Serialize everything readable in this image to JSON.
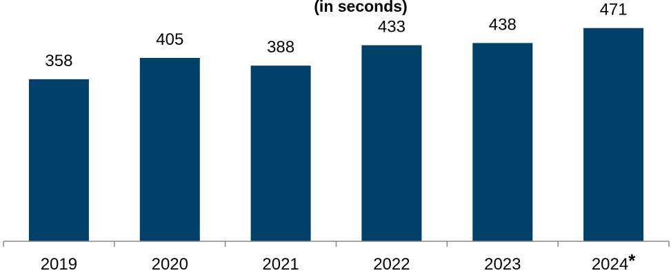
{
  "chart_data": {
    "type": "bar",
    "subtitle": "(in seconds)",
    "categories": [
      "2019",
      "2020",
      "2021",
      "2022",
      "2023",
      "2024"
    ],
    "category_suffixes": [
      "",
      "",
      "",
      "",
      "",
      "*"
    ],
    "values": [
      358,
      405,
      388,
      433,
      438,
      471
    ],
    "data_labels": [
      "358",
      "405",
      "388",
      "433",
      "438",
      "471"
    ],
    "xlabel": "",
    "ylabel": "",
    "ylim": [
      0,
      480
    ],
    "grid": false,
    "legend": "none",
    "colors": {
      "bar": "#00416A",
      "axis": "#888888",
      "text": "#000000"
    }
  }
}
